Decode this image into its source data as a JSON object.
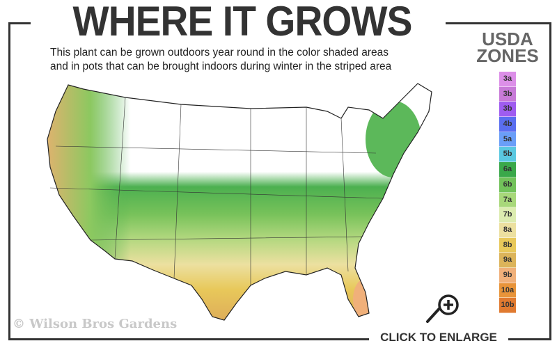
{
  "title": "WHERE IT GROWS",
  "description": [
    "This plant can be grown outdoors year round in the color shaded areas",
    "and in pots that can be brought indoors during winter in the striped area"
  ],
  "legend": {
    "title_line1": "USDA",
    "title_line2": "ZONES",
    "zones": [
      {
        "label": "3a",
        "color": "#dc8fe8"
      },
      {
        "label": "3b",
        "color": "#c87ad8"
      },
      {
        "label": "3b",
        "color": "#9f5cf0"
      },
      {
        "label": "4b",
        "color": "#5a6ef0"
      },
      {
        "label": "5a",
        "color": "#6a9ef8"
      },
      {
        "label": "5b",
        "color": "#5ac8e0"
      },
      {
        "label": "6a",
        "color": "#3aa84a"
      },
      {
        "label": "6b",
        "color": "#72c25a"
      },
      {
        "label": "7a",
        "color": "#a8d87a"
      },
      {
        "label": "7b",
        "color": "#dcecb0"
      },
      {
        "label": "8a",
        "color": "#ece0a0"
      },
      {
        "label": "8b",
        "color": "#e8c85a"
      },
      {
        "label": "9a",
        "color": "#dcb45a"
      },
      {
        "label": "9b",
        "color": "#f0b07a"
      },
      {
        "label": "10a",
        "color": "#e8943a"
      },
      {
        "label": "10b",
        "color": "#e07a30"
      }
    ]
  },
  "copyright": "© Wilson Bros Gardens",
  "enlarge_label": "CLICK TO ENLARGE",
  "icons": {
    "enlarge": "magnifier-plus-icon"
  }
}
